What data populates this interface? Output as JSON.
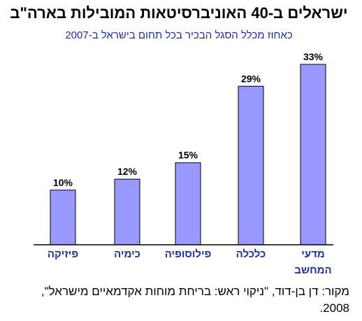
{
  "title": "ישראלים ב-40 האוניברסיטאות המובילות בארה\"ב",
  "subtitle": "כאחוז מכלל הסגל הבכיר בכל תחום בישראל ב-2007",
  "source": "מקור: דן בן-דוד, \"ניקוי ראש: בריחת מוחות אקדמאיים מישראל\", 2008.",
  "colors": {
    "bar_fill": "#9999ff",
    "bar_stroke": "#000000",
    "category_text": "#1f2fa8",
    "subtitle_text": "#1f2fa8"
  },
  "chart_data": {
    "type": "bar",
    "categories": [
      [
        "פיזיקה"
      ],
      [
        "כימיה"
      ],
      [
        "פילוסופיה"
      ],
      [
        "כלכלה"
      ],
      [
        "מדעי",
        "המחשב"
      ]
    ],
    "values": [
      10,
      12,
      15,
      29,
      33
    ],
    "value_labels": [
      "10%",
      "12%",
      "15%",
      "29%",
      "33%"
    ],
    "ylim": [
      0,
      33
    ],
    "grid": false,
    "legend": "none"
  }
}
